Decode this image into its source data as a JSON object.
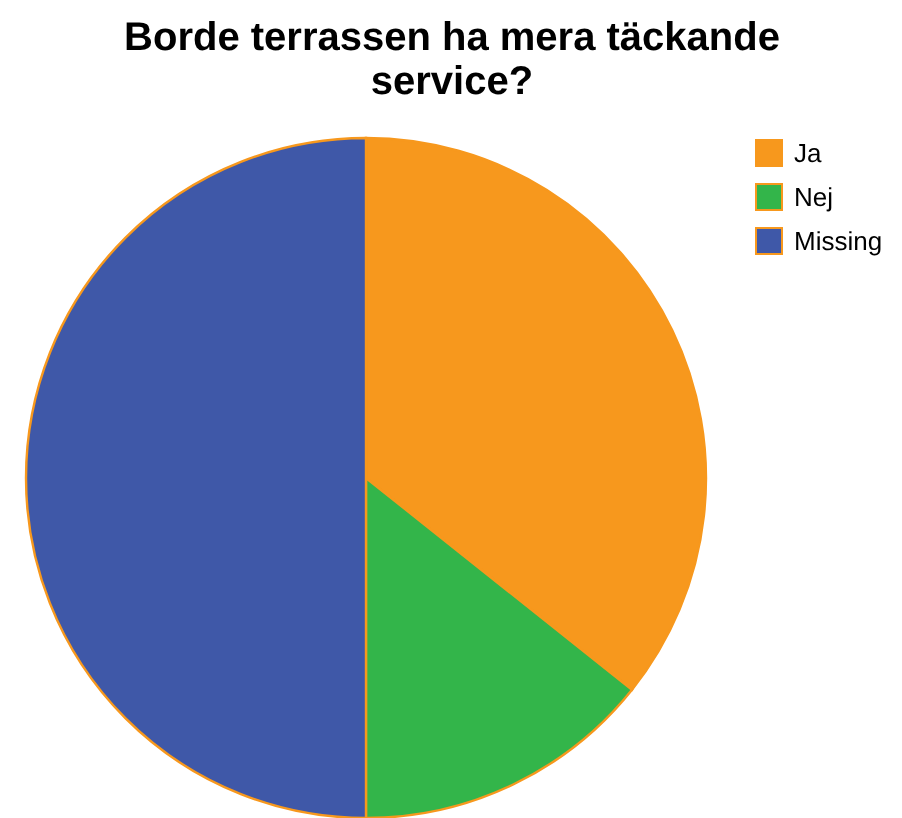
{
  "chart_data": {
    "type": "pie",
    "title": "Borde terrassen ha mera täckande service?",
    "categories": [
      "Ja",
      "Nej",
      "Missing"
    ],
    "values": [
      35.7,
      14.3,
      50
    ],
    "colors": [
      "#f7981d",
      "#33b54a",
      "#3f58a8"
    ],
    "legend": "top right"
  }
}
